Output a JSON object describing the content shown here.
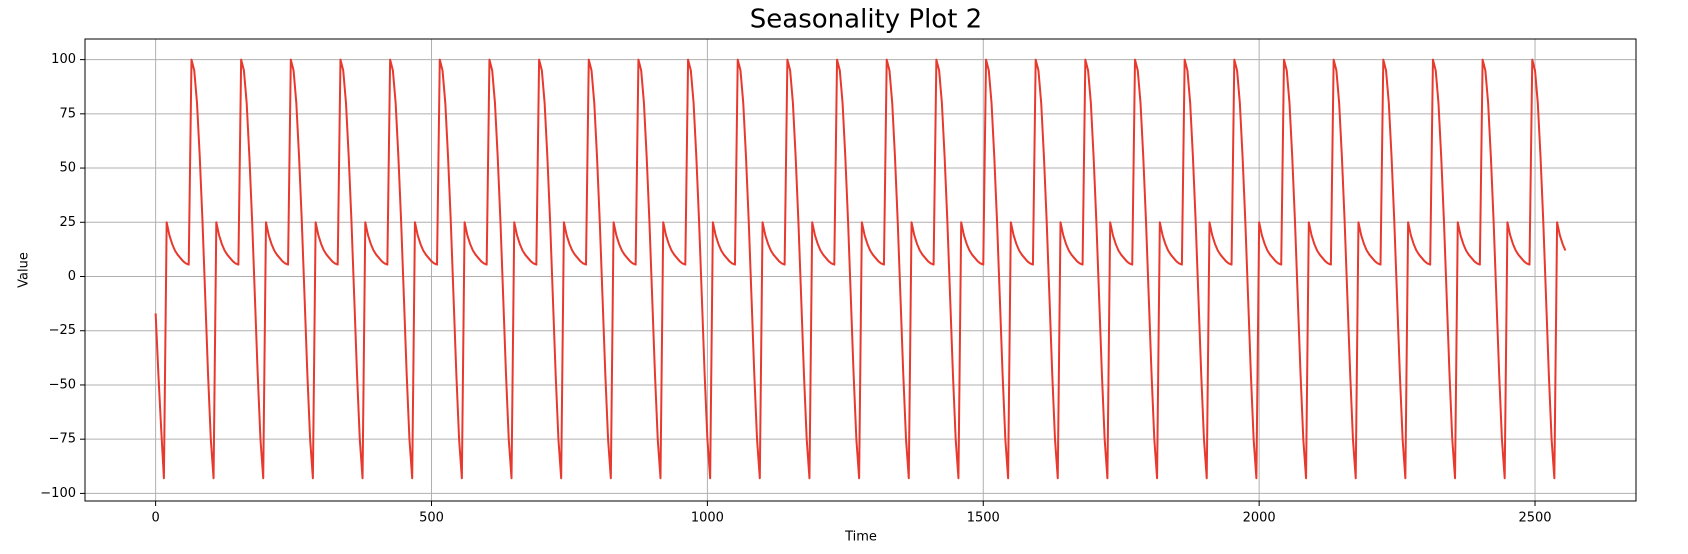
{
  "chart_data": {
    "type": "line",
    "title": "Seasonality Plot 2",
    "xlabel": "Time",
    "ylabel": "Value",
    "color": "#e8392e",
    "grid": true,
    "xlim": [
      -128,
      2683
    ],
    "ylim": [
      -103.5,
      109.5
    ],
    "xticks": [
      0,
      500,
      1000,
      1500,
      2000,
      2500
    ],
    "yticks": [
      {
        "value": -100,
        "label": "−100"
      },
      {
        "value": -75,
        "label": "−75"
      },
      {
        "value": -50,
        "label": "−50"
      },
      {
        "value": -25,
        "label": "−25"
      },
      0,
      25,
      50,
      75,
      100
    ],
    "x": [
      0,
      5,
      10,
      15,
      20,
      25,
      30,
      35,
      40,
      45,
      50,
      55,
      60,
      65,
      70,
      75,
      80,
      85,
      90,
      95,
      100,
      105,
      110,
      115,
      120,
      125,
      130,
      135,
      140,
      145,
      150,
      155,
      160,
      165,
      170,
      175,
      180,
      185,
      190,
      195,
      200,
      205,
      210,
      215,
      220,
      225,
      230,
      235,
      240,
      245,
      250,
      255,
      260,
      265,
      270,
      275,
      280,
      285,
      290,
      295,
      300,
      305,
      310,
      315,
      320,
      325,
      330,
      335,
      340,
      345,
      350,
      355,
      360,
      365,
      370,
      375,
      380,
      385,
      390,
      395,
      400,
      405,
      410,
      415,
      420,
      425,
      430,
      435,
      440,
      445,
      450,
      455,
      460,
      465,
      470,
      475,
      480,
      485,
      490,
      495,
      500,
      505,
      510,
      515,
      520,
      525,
      530,
      535,
      540,
      545,
      550,
      555,
      560,
      565,
      570,
      575,
      580,
      585,
      590,
      595,
      600,
      605,
      610,
      615,
      620,
      625,
      630,
      635,
      640,
      645,
      650,
      655,
      660,
      665,
      670,
      675,
      680,
      685,
      690,
      695,
      700,
      705,
      710,
      715,
      720,
      725,
      730,
      735,
      740,
      745,
      750,
      755,
      760,
      765,
      770,
      775,
      780,
      785,
      790,
      795,
      800,
      805,
      810,
      815,
      820,
      825,
      830,
      835,
      840,
      845,
      850,
      855,
      860,
      865,
      870,
      875,
      880,
      885,
      890,
      895,
      900,
      905,
      910,
      915,
      920,
      925,
      930,
      935,
      940,
      945,
      950,
      955,
      960,
      965,
      970,
      975,
      980,
      985,
      990,
      995,
      1000,
      1005,
      1010,
      1015,
      1020,
      1025,
      1030,
      1035,
      1040,
      1045,
      1050,
      1055,
      1060,
      1065,
      1070,
      1075,
      1080,
      1085,
      1090,
      1095,
      1100,
      1105,
      1110,
      1115,
      1120,
      1125,
      1130,
      1135,
      1140,
      1145,
      1150,
      1155,
      1160,
      1165,
      1170,
      1175,
      1180,
      1185,
      1190,
      1195,
      1200,
      1205,
      1210,
      1215,
      1220,
      1225,
      1230,
      1235,
      1240,
      1245,
      1250,
      1255,
      1260,
      1265,
      1270,
      1275,
      1280,
      1285,
      1290,
      1295,
      1300,
      1305,
      1310,
      1315,
      1320,
      1325,
      1330,
      1335,
      1340,
      1345,
      1350,
      1355,
      1360,
      1365,
      1370,
      1375,
      1380,
      1385,
      1390,
      1395,
      1400,
      1405,
      1410,
      1415,
      1420,
      1425,
      1430,
      1435,
      1440,
      1445,
      1450,
      1455,
      1460,
      1465,
      1470,
      1475,
      1480,
      1485,
      1490,
      1495,
      1500,
      1505,
      1510,
      1515,
      1520,
      1525,
      1530,
      1535,
      1540,
      1545,
      1550,
      1555,
      1560,
      1565,
      1570,
      1575,
      1580,
      1585,
      1590,
      1595,
      1600,
      1605,
      1610,
      1615,
      1620,
      1625,
      1630,
      1635,
      1640,
      1645,
      1650,
      1655,
      1660,
      1665,
      1670,
      1675,
      1680,
      1685,
      1690,
      1695,
      1700,
      1705,
      1710,
      1715,
      1720,
      1725,
      1730,
      1735,
      1740,
      1745,
      1750,
      1755,
      1760,
      1765,
      1770,
      1775,
      1780,
      1785,
      1790,
      1795,
      1800,
      1805,
      1810,
      1815,
      1820,
      1825,
      1830,
      1835,
      1840,
      1845,
      1850,
      1855,
      1860,
      1865,
      1870,
      1875,
      1880,
      1885,
      1890,
      1895,
      1900,
      1905,
      1910,
      1915,
      1920,
      1925,
      1930,
      1935,
      1940,
      1945,
      1950,
      1955,
      1960,
      1965,
      1970,
      1975,
      1980,
      1985,
      1990,
      1995,
      2000,
      2005,
      2010,
      2015,
      2020,
      2025,
      2030,
      2035,
      2040,
      2045,
      2050,
      2055,
      2060,
      2065,
      2070,
      2075,
      2080,
      2085,
      2090,
      2095,
      2100,
      2105,
      2110,
      2115,
      2120,
      2125,
      2130,
      2135,
      2140,
      2145,
      2150,
      2155,
      2160,
      2165,
      2170,
      2175,
      2180,
      2185,
      2190,
      2195,
      2200,
      2205,
      2210,
      2215,
      2220,
      2225,
      2230,
      2235,
      2240,
      2245,
      2250,
      2255,
      2260,
      2265,
      2270,
      2275,
      2280,
      2285,
      2290,
      2295,
      2300,
      2305,
      2310,
      2315,
      2320,
      2325,
      2330,
      2335,
      2340,
      2345,
      2350,
      2355,
      2360,
      2365,
      2370,
      2375,
      2380,
      2385,
      2390,
      2395,
      2400,
      2405,
      2410,
      2415,
      2420,
      2425,
      2430,
      2435,
      2440,
      2445,
      2450,
      2455,
      2460,
      2465,
      2470,
      2475,
      2480,
      2485,
      2490,
      2495,
      2500,
      2505,
      2510,
      2515,
      2520,
      2525,
      2530,
      2535,
      2540,
      2545,
      2550,
      2555
    ],
    "values": [
      -17,
      -45,
      -70,
      -93,
      25,
      19,
      15,
      12,
      10,
      8.5,
      7,
      6,
      5.5,
      100,
      95,
      80,
      55,
      25,
      -10,
      -45,
      -75,
      -93,
      25,
      19,
      15,
      12,
      10,
      8.5,
      7,
      6,
      5.5,
      100,
      95,
      80,
      55,
      25,
      -10,
      -45,
      -75,
      -93,
      25,
      19,
      15,
      12,
      10,
      8.5,
      7,
      6,
      5.5,
      100,
      95,
      80,
      55,
      25,
      -10,
      -45,
      -75,
      -93,
      25,
      19,
      15,
      12,
      10,
      8.5,
      7,
      6,
      5.5,
      100,
      95,
      80,
      55,
      25,
      -10,
      -45,
      -75,
      -93,
      25,
      19,
      15,
      12,
      10,
      8.5,
      7,
      6,
      5.5,
      100,
      95,
      80,
      55,
      25,
      -10,
      -45,
      -75,
      -93,
      25,
      19,
      15,
      12,
      10,
      8.5,
      7,
      6,
      5.5,
      100,
      95,
      80,
      55,
      25,
      -10,
      -45,
      -75,
      -93,
      25,
      19,
      15,
      12,
      10,
      8.5,
      7,
      6,
      5.5,
      100,
      95,
      80,
      55,
      25,
      -10,
      -45,
      -75,
      -93,
      25,
      19,
      15,
      12,
      10,
      8.5,
      7,
      6,
      5.5,
      100,
      95,
      80,
      55,
      25,
      -10,
      -45,
      -75,
      -93,
      25,
      19,
      15,
      12,
      10,
      8.5,
      7,
      6,
      5.5,
      100,
      95,
      80,
      55,
      25,
      -10,
      -45,
      -75,
      -93,
      25,
      19,
      15,
      12,
      10,
      8.5,
      7,
      6,
      5.5,
      100,
      95,
      80,
      55,
      25,
      -10,
      -45,
      -75,
      -93,
      25,
      19,
      15,
      12,
      10,
      8.5,
      7,
      6,
      5.5,
      100,
      95,
      80,
      55,
      25,
      -10,
      -45,
      -75,
      -93,
      25,
      19,
      15,
      12,
      10,
      8.5,
      7,
      6,
      5.5,
      100,
      95,
      80,
      55,
      25,
      -10,
      -45,
      -75,
      -93,
      25,
      19,
      15,
      12,
      10,
      8.5,
      7,
      6,
      5.5,
      100,
      95,
      80,
      55,
      25,
      -10,
      -45,
      -75,
      -93,
      25,
      19,
      15,
      12,
      10,
      8.5,
      7,
      6,
      5.5,
      100,
      95,
      80,
      55,
      25,
      -10,
      -45,
      -75,
      -93,
      25,
      19,
      15,
      12,
      10,
      8.5,
      7,
      6,
      5.5,
      100,
      95,
      80,
      55,
      25,
      -10,
      -45,
      -75,
      -93,
      25,
      19,
      15,
      12,
      10,
      8.5,
      7,
      6,
      5.5,
      100,
      95,
      80,
      55,
      25,
      -10,
      -45,
      -75,
      -93,
      25,
      19,
      15,
      12,
      10,
      8.5,
      7,
      6,
      5.5,
      100,
      95,
      80,
      55,
      25,
      -10,
      -45,
      -75,
      -93,
      25,
      19,
      15,
      12,
      10,
      8.5,
      7,
      6,
      5.5,
      100,
      95,
      80,
      55,
      25,
      -10,
      -45,
      -75,
      -93,
      25,
      19,
      15,
      12,
      10,
      8.5,
      7,
      6,
      5.5,
      100,
      95,
      80,
      55,
      25,
      -10,
      -45,
      -75,
      -93,
      25,
      19,
      15,
      12,
      10,
      8.5,
      7,
      6,
      5.5,
      100,
      95,
      80,
      55,
      25,
      -10,
      -45,
      -75,
      -93,
      25,
      19,
      15,
      12,
      10,
      8.5,
      7,
      6,
      5.5,
      100,
      95,
      80,
      55,
      25,
      -10,
      -45,
      -75,
      -93,
      25,
      19,
      15,
      12,
      10,
      8.5,
      7,
      6,
      5.5,
      100,
      95,
      80,
      55,
      25,
      -10,
      -45,
      -75,
      -93,
      25,
      19,
      15,
      12,
      10,
      8.5,
      7,
      6,
      5.5,
      100,
      95,
      80,
      55,
      25,
      -10,
      -45,
      -75,
      -93,
      25,
      19,
      15,
      12,
      10,
      8.5,
      7,
      6,
      5.5,
      100,
      95,
      80,
      55,
      25,
      -10,
      -45,
      -75,
      -93,
      25,
      19,
      15,
      12,
      10,
      8.5,
      7,
      6,
      5.5,
      100,
      95,
      80,
      55,
      25,
      -10,
      -45,
      -75,
      -93,
      25,
      19,
      15,
      12,
      10,
      8.5,
      7,
      6,
      5.5,
      100,
      95,
      80,
      55,
      25,
      -10,
      -45,
      -75,
      -93,
      25,
      19,
      15,
      12,
      10,
      8.5,
      7,
      6,
      5.5,
      100,
      95,
      80,
      55,
      25,
      -10,
      -45,
      -75,
      -93,
      25,
      19,
      15,
      12,
      10,
      8.5,
      7,
      6,
      5.5,
      100,
      95,
      80,
      55,
      25,
      -10,
      -45,
      -75,
      -93,
      25,
      19,
      15,
      12
    ]
  }
}
